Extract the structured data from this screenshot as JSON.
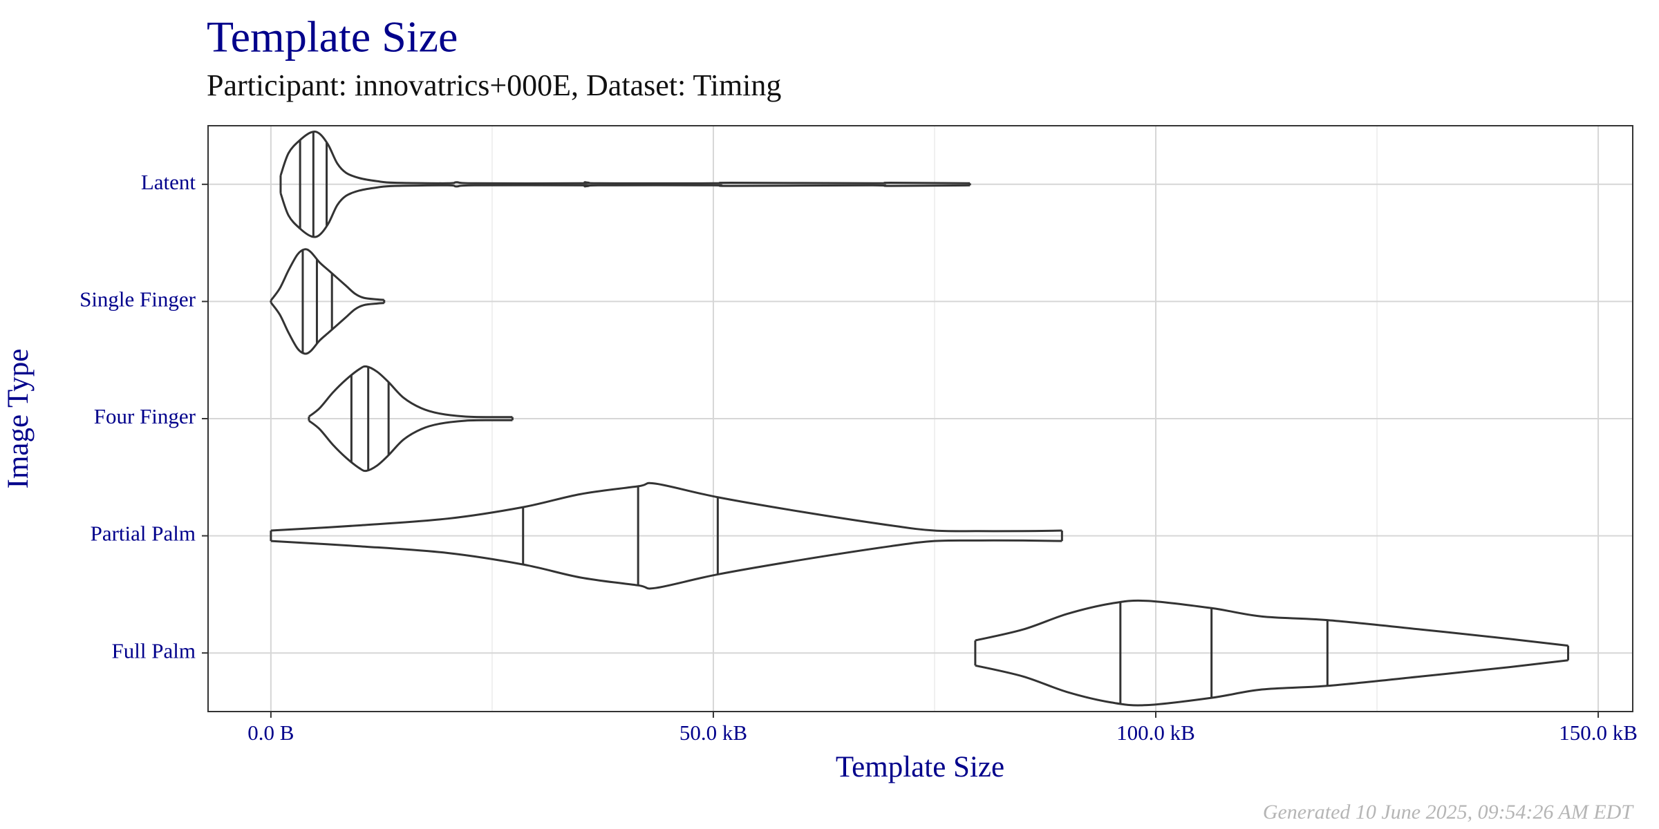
{
  "chart_data": {
    "type": "violin",
    "title": "Template Size",
    "subtitle": "Participant: innovatrics+000E, Dataset: Timing",
    "x_label": "Template Size",
    "y_label": "Image Type",
    "footer": "Generated 10 June 2025, 09:54:26 AM EDT",
    "color": "#333333",
    "grid": true,
    "xlim": [
      -7.1,
      153.9
    ],
    "xticks": [
      {
        "value": 0,
        "label": "0.0 B"
      },
      {
        "value": 50,
        "label": "50.0 kB"
      },
      {
        "value": 100,
        "label": "100.0 kB"
      },
      {
        "value": 150,
        "label": "150.0 kB"
      }
    ],
    "minor_xticks": [
      25,
      75,
      125
    ],
    "categories": [
      "Latent",
      "Single Finger",
      "Four Finger",
      "Partial Palm",
      "Full Palm"
    ],
    "violins": [
      {
        "density_x": [
          1.1,
          2,
          3.3,
          4.6,
          5.5,
          6.5,
          7.5,
          8.5,
          10,
          12,
          14,
          20,
          21,
          23,
          35,
          35.5,
          37,
          50,
          52,
          68,
          70,
          79
        ],
        "density_width": [
          0.17,
          0.6,
          0.85,
          1.0,
          0.97,
          0.75,
          0.4,
          0.22,
          0.12,
          0.06,
          0.03,
          0.02,
          0.04,
          0.02,
          0.02,
          0.04,
          0.02,
          0.02,
          0.03,
          0.02,
          0.03,
          0.02
        ],
        "quartiles": [
          3.3,
          4.8,
          6.3
        ]
      },
      {
        "density_x": [
          0,
          1,
          2,
          3,
          3.8,
          4.5,
          5.5,
          6.5,
          7.5,
          8.5,
          9.5,
          10.5,
          12,
          12.8
        ],
        "density_width": [
          0.02,
          0.25,
          0.6,
          0.9,
          1.0,
          0.95,
          0.75,
          0.6,
          0.45,
          0.3,
          0.15,
          0.07,
          0.04,
          0.03
        ],
        "quartiles": [
          3.6,
          5.2,
          6.9
        ]
      },
      {
        "density_x": [
          4.3,
          5.5,
          7,
          8.5,
          10,
          10.8,
          12,
          13.3,
          15,
          17,
          19,
          22,
          25,
          27.3
        ],
        "density_width": [
          0.04,
          0.2,
          0.5,
          0.75,
          0.95,
          1.0,
          0.9,
          0.7,
          0.4,
          0.2,
          0.1,
          0.04,
          0.03,
          0.03
        ],
        "quartiles": [
          9.1,
          11,
          13.3
        ]
      },
      {
        "density_x": [
          0,
          10,
          20,
          28.5,
          35,
          41.5,
          43.5,
          50.5,
          60,
          70,
          75,
          80,
          85,
          89.4
        ],
        "density_width": [
          0.1,
          0.2,
          0.33,
          0.55,
          0.8,
          0.95,
          1.0,
          0.74,
          0.46,
          0.2,
          0.1,
          0.09,
          0.09,
          0.1
        ],
        "quartiles": [
          28.5,
          41.5,
          50.5
        ]
      },
      {
        "density_x": [
          79.6,
          85,
          90,
          95,
          99,
          106.3,
          112,
          119.4,
          130,
          140,
          146.6
        ],
        "density_width": [
          0.24,
          0.45,
          0.75,
          0.95,
          1.0,
          0.86,
          0.7,
          0.63,
          0.45,
          0.27,
          0.14
        ],
        "quartiles": [
          96,
          106.3,
          119.4
        ]
      }
    ]
  }
}
